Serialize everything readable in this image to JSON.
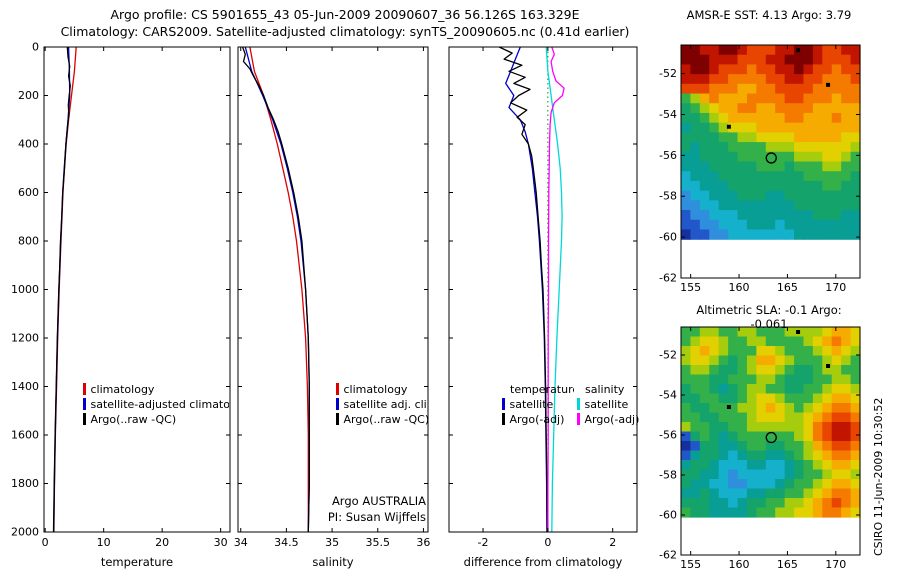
{
  "title": {
    "line1": "Argo profile: CS 5901655_43 05-Jun-2009 20090607_36 56.126S 163.329E",
    "line2": "Climatology: CARS2009. Satellite-adjusted climatology: synTS_20090605.nc (0.41d earlier)"
  },
  "credit": "CSIRO 11-Jun-2009 10:30:52",
  "map_palette": {
    "0": "#ffffff",
    "1": "#7e0000",
    "2": "#c21500",
    "3": "#e84600",
    "4": "#f47b00",
    "5": "#f6ab00",
    "6": "#e2d000",
    "7": "#a6cc0e",
    "8": "#33b04a",
    "9": "#14a36b",
    "a": "#089e95",
    "b": "#14b0cc",
    "c": "#2f8fdd",
    "d": "#2257c9",
    "e": "#15309c"
  },
  "chart_data": [
    {
      "type": "line",
      "id": "temperature-profile",
      "xlabel": "temperature",
      "xlim": [
        -0.2,
        31.6
      ],
      "ylim": [
        0,
        2000
      ],
      "xticks": [
        0,
        10,
        20,
        30
      ],
      "yticks": [
        0,
        200,
        400,
        600,
        800,
        1000,
        1200,
        1400,
        1600,
        1800,
        2000
      ],
      "series": [
        {
          "key": "climatology",
          "name": "climatology",
          "color": "#dd0000",
          "points": [
            [
              0,
              5.3
            ],
            [
              100,
              5.0
            ],
            [
              200,
              4.5
            ],
            [
              300,
              4.0
            ],
            [
              400,
              3.6
            ],
            [
              500,
              3.3
            ],
            [
              600,
              3.05
            ],
            [
              800,
              2.7
            ],
            [
              1000,
              2.4
            ],
            [
              1200,
              2.15
            ],
            [
              1400,
              1.95
            ],
            [
              1600,
              1.75
            ],
            [
              1800,
              1.6
            ],
            [
              2000,
              1.5
            ]
          ]
        },
        {
          "key": "satellite-adjusted",
          "name": "satellite-adjusted climatology",
          "color": "#0000cc",
          "points": [
            [
              0,
              4.0
            ],
            [
              100,
              4.15
            ],
            [
              200,
              4.2
            ],
            [
              300,
              3.9
            ],
            [
              400,
              3.55
            ],
            [
              500,
              3.25
            ],
            [
              600,
              3.0
            ],
            [
              800,
              2.65
            ],
            [
              1000,
              2.35
            ],
            [
              1200,
              2.1
            ],
            [
              1400,
              1.9
            ],
            [
              1600,
              1.72
            ],
            [
              1800,
              1.57
            ],
            [
              2000,
              1.45
            ]
          ]
        },
        {
          "key": "argo",
          "name": "Argo(..raw -QC)",
          "color": "#000000",
          "points": [
            [
              0,
              3.79
            ],
            [
              40,
              3.9
            ],
            [
              80,
              4.2
            ],
            [
              120,
              4.0
            ],
            [
              160,
              4.3
            ],
            [
              200,
              4.1
            ],
            [
              240,
              3.95
            ],
            [
              280,
              4.05
            ],
            [
              320,
              3.85
            ],
            [
              360,
              3.7
            ],
            [
              400,
              3.55
            ],
            [
              500,
              3.3
            ],
            [
              600,
              3.0
            ],
            [
              700,
              2.85
            ],
            [
              800,
              2.62
            ],
            [
              900,
              2.5
            ],
            [
              1000,
              2.33
            ],
            [
              1200,
              2.08
            ],
            [
              1400,
              1.88
            ],
            [
              1600,
              1.7
            ],
            [
              1800,
              1.55
            ],
            [
              2000,
              1.42
            ]
          ]
        }
      ]
    },
    {
      "type": "line",
      "id": "salinity-profile",
      "xlabel": "salinity",
      "xlim": [
        33.97,
        36.05
      ],
      "ylim": [
        0,
        2000
      ],
      "xticks": [
        34,
        34.5,
        35,
        35.5,
        36
      ],
      "yticks": [
        0,
        200,
        400,
        600,
        800,
        1000,
        1200,
        1400,
        1600,
        1800,
        2000
      ],
      "annotation": [
        "Argo AUSTRALIA",
        "PI: Susan Wijffels"
      ],
      "series": [
        {
          "key": "climatology",
          "name": "climatology",
          "color": "#dd0000",
          "points": [
            [
              0,
              34.1
            ],
            [
              100,
              34.15
            ],
            [
              200,
              34.25
            ],
            [
              300,
              34.33
            ],
            [
              400,
              34.4
            ],
            [
              500,
              34.46
            ],
            [
              600,
              34.52
            ],
            [
              700,
              34.57
            ],
            [
              800,
              34.61
            ],
            [
              1000,
              34.67
            ],
            [
              1200,
              34.71
            ],
            [
              1400,
              34.73
            ],
            [
              1600,
              34.74
            ],
            [
              1800,
              34.74
            ],
            [
              2000,
              34.74
            ]
          ]
        },
        {
          "key": "satellite-adjusted",
          "name": "satellite adj. clim.",
          "color": "#0000cc",
          "points": [
            [
              0,
              34.05
            ],
            [
              100,
              34.12
            ],
            [
              200,
              34.24
            ],
            [
              300,
              34.35
            ],
            [
              400,
              34.44
            ],
            [
              500,
              34.51
            ],
            [
              600,
              34.57
            ],
            [
              700,
              34.62
            ],
            [
              800,
              34.66
            ],
            [
              1000,
              34.71
            ],
            [
              1200,
              34.74
            ],
            [
              1400,
              34.75
            ],
            [
              1600,
              34.75
            ],
            [
              1800,
              34.75
            ],
            [
              2000,
              34.74
            ]
          ]
        },
        {
          "key": "argo",
          "name": "Argo(..raw -QC)",
          "color": "#000000",
          "points": [
            [
              0,
              34.02
            ],
            [
              30,
              34.05
            ],
            [
              60,
              34.03
            ],
            [
              90,
              34.1
            ],
            [
              120,
              34.14
            ],
            [
              160,
              34.2
            ],
            [
              200,
              34.25
            ],
            [
              250,
              34.3
            ],
            [
              300,
              34.36
            ],
            [
              350,
              34.41
            ],
            [
              400,
              34.45
            ],
            [
              500,
              34.52
            ],
            [
              600,
              34.58
            ],
            [
              700,
              34.63
            ],
            [
              800,
              34.67
            ],
            [
              1000,
              34.71
            ],
            [
              1200,
              34.74
            ],
            [
              1400,
              34.75
            ],
            [
              1600,
              34.75
            ],
            [
              1800,
              34.75
            ],
            [
              2000,
              34.74
            ]
          ]
        }
      ]
    },
    {
      "type": "line",
      "id": "difference-from-climatology",
      "xlabel": "difference from climatology",
      "xlim": [
        -3.05,
        2.75
      ],
      "ylim": [
        0,
        2000
      ],
      "xticks": [
        -2,
        0,
        2
      ],
      "yticks": [
        0,
        200,
        400,
        600,
        800,
        1000,
        1200,
        1400,
        1600,
        1800,
        2000
      ],
      "zero_line": true,
      "legend_groups": [
        "temperature",
        "salinity"
      ],
      "series": [
        {
          "key": "temp-satellite",
          "name": "satellite",
          "color": "#0000cc",
          "points": [
            [
              0,
              -0.85
            ],
            [
              50,
              -1.0
            ],
            [
              100,
              -1.15
            ],
            [
              150,
              -1.3
            ],
            [
              200,
              -1.05
            ],
            [
              250,
              -1.2
            ],
            [
              300,
              -0.85
            ],
            [
              350,
              -0.7
            ],
            [
              400,
              -0.6
            ],
            [
              500,
              -0.48
            ],
            [
              600,
              -0.4
            ],
            [
              700,
              -0.32
            ],
            [
              800,
              -0.26
            ],
            [
              1000,
              -0.17
            ],
            [
              1200,
              -0.11
            ],
            [
              1400,
              -0.08
            ],
            [
              1600,
              -0.06
            ],
            [
              1800,
              -0.04
            ],
            [
              2000,
              -0.03
            ]
          ]
        },
        {
          "key": "temp-argo",
          "name": "Argo(-adj)",
          "color": "#000000",
          "points": [
            [
              0,
              -1.5
            ],
            [
              25,
              -1.1
            ],
            [
              50,
              -1.35
            ],
            [
              75,
              -0.8
            ],
            [
              100,
              -1.2
            ],
            [
              125,
              -0.7
            ],
            [
              150,
              -1.05
            ],
            [
              175,
              -0.55
            ],
            [
              200,
              -0.9
            ],
            [
              230,
              -1.15
            ],
            [
              260,
              -0.65
            ],
            [
              290,
              -0.95
            ],
            [
              320,
              -0.7
            ],
            [
              360,
              -0.8
            ],
            [
              400,
              -0.6
            ],
            [
              450,
              -0.5
            ],
            [
              500,
              -0.45
            ],
            [
              600,
              -0.36
            ],
            [
              700,
              -0.3
            ],
            [
              800,
              -0.24
            ],
            [
              900,
              -0.2
            ],
            [
              1000,
              -0.15
            ],
            [
              1200,
              -0.1
            ],
            [
              1400,
              -0.07
            ],
            [
              1600,
              -0.05
            ],
            [
              1800,
              -0.03
            ],
            [
              2000,
              -0.02
            ]
          ]
        },
        {
          "key": "sal-satellite",
          "name": "satellite",
          "color": "#00d8d8",
          "points": [
            [
              0,
              -0.05
            ],
            [
              100,
              0.0
            ],
            [
              200,
              0.1
            ],
            [
              300,
              0.2
            ],
            [
              400,
              0.3
            ],
            [
              500,
              0.38
            ],
            [
              600,
              0.42
            ],
            [
              700,
              0.44
            ],
            [
              800,
              0.42
            ],
            [
              1000,
              0.35
            ],
            [
              1200,
              0.28
            ],
            [
              1400,
              0.22
            ],
            [
              1600,
              0.18
            ],
            [
              1800,
              0.14
            ],
            [
              2000,
              0.12
            ]
          ]
        },
        {
          "key": "sal-argo",
          "name": "Argo(-adj)",
          "color": "#ff00ff",
          "points": [
            [
              0,
              0.12
            ],
            [
              30,
              0.2
            ],
            [
              60,
              0.1
            ],
            [
              100,
              0.15
            ],
            [
              140,
              0.25
            ],
            [
              170,
              0.5
            ],
            [
              200,
              0.45
            ],
            [
              230,
              0.2
            ],
            [
              270,
              0.1
            ],
            [
              320,
              0.07
            ],
            [
              400,
              0.05
            ],
            [
              500,
              0.04
            ],
            [
              600,
              0.03
            ],
            [
              800,
              0.02
            ],
            [
              1000,
              0.02
            ],
            [
              1200,
              0.01
            ],
            [
              1400,
              0.01
            ],
            [
              1600,
              0.01
            ],
            [
              1800,
              0.0
            ],
            [
              2000,
              0.0
            ]
          ]
        }
      ]
    },
    {
      "type": "heatmap",
      "id": "sst-map",
      "title": "AMSR-E SST: 4.13 Argo: 3.79",
      "xticks": [
        155,
        160,
        165,
        170
      ],
      "yticks": [
        -52,
        -54,
        -56,
        -58,
        -60,
        -62
      ],
      "lon_range": [
        154,
        172.5
      ],
      "lat_range": [
        -50.6,
        -62
      ],
      "argo_marker": {
        "lon": 163.329,
        "lat": -56.126
      },
      "land_marks": [
        {
          "lon": 166.1,
          "lat": -50.85
        },
        {
          "lon": 169.2,
          "lat": -52.55
        },
        {
          "lon": 158.95,
          "lat": -54.6
        }
      ],
      "grid": [
        "1122112333221123322",
        "1112223332211123332",
        "2112333433221233433",
        "2223344443322334443",
        "3334445544333344444",
        "8754555444433444544",
        "9876554455444455555",
        "9987655555544555455",
        "a998766655555555555",
        "9999887766665555566",
        "9a99988887776666667",
        "aa99998888887776678",
        "aaa9999988898887788",
        "baaa999999999888889",
        "bbaaa99999999998899",
        "cbbaaa999aa99999999",
        "ccbbaaaaaaaa9999999",
        "dccbbbaaaaaaaa999aa",
        "ddccbbbaaabaaaaaaaa",
        "eddccbbbbbbbaaaaaaa",
        "0000000000000000000",
        "0000000000000000000",
        "0000000000000000000",
        "0000000000000000000"
      ]
    },
    {
      "type": "heatmap",
      "id": "sla-map",
      "title": "Altimetric SLA: -0.1 Argo: -0.061",
      "xticks": [
        155,
        160,
        165,
        170
      ],
      "yticks": [
        -52,
        -54,
        -56,
        -58,
        -60,
        -62
      ],
      "lon_range": [
        154,
        172.5
      ],
      "lat_range": [
        -50.6,
        -62
      ],
      "argo_marker": {
        "lon": 163.329,
        "lat": -56.126
      },
      "land_marks": [
        {
          "lon": 166.1,
          "lat": -50.85
        },
        {
          "lon": 169.2,
          "lat": -52.55
        },
        {
          "lon": 158.95,
          "lat": -54.6
        }
      ],
      "grid": [
        "8877887788877776556",
        "8766788778888765456",
        "7656788866788876567",
        "7667898755678887678",
        "8778998766789987788",
        "8889988877899988778",
        "9889a98778899887667",
        "9988998766788876556",
        "8998887765678765445",
        "8899888766677654334",
        "7889988777777643223",
        "d989a98888887643223",
        "ed99aa9889988754334",
        "da99aba99aa98765445",
        "a99abbbaabba9876556",
        "99aabcbbbbba9887667",
        "9aabbccbbba98876556",
        "aa9abbbaa9988765445",
        "999aaba998877654345",
        "899aaaa988776654456",
        "0000000000000000000",
        "0000000000000000000",
        "0000000000000000000",
        "0000000000000000000"
      ]
    }
  ]
}
